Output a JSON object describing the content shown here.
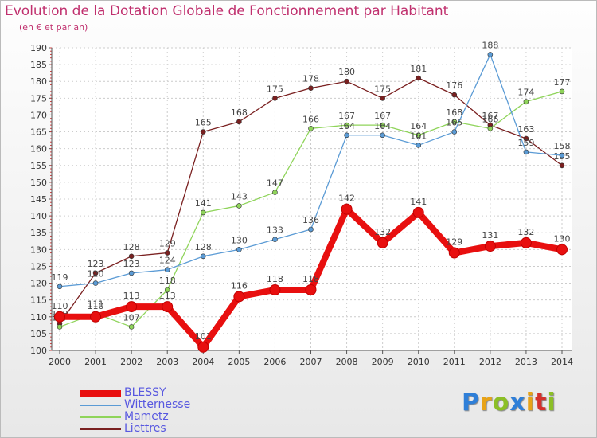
{
  "title": "Evolution de la Dotation Globale de Fonctionnement par Habitant",
  "subtitle": "(en € et par an)",
  "logo": [
    "P",
    "r",
    "o",
    "x",
    "i",
    "t",
    "i"
  ],
  "logo_colors": [
    "#2f7fd8",
    "#e8a317",
    "#8cbf26",
    "#2f7fd8",
    "#e8a317",
    "#d4312c",
    "#8cbf26"
  ],
  "chart_data": {
    "type": "line",
    "title": "Evolution de la Dotation Globale de Fonctionnement par Habitant",
    "subtitle": "(en € et par an)",
    "xlabel": "",
    "ylabel": "",
    "x": [
      "2000",
      "2001",
      "2002",
      "2003",
      "2004",
      "2005",
      "2006",
      "2007",
      "2008",
      "2009",
      "2010",
      "2011",
      "2012",
      "2013",
      "2014"
    ],
    "ylim": [
      100,
      190
    ],
    "yticks": [
      100,
      105,
      110,
      115,
      120,
      125,
      130,
      135,
      140,
      145,
      150,
      155,
      160,
      165,
      170,
      175,
      180,
      185,
      190
    ],
    "series": [
      {
        "name": "BLESSY",
        "color": "#e80f0f",
        "values": [
          110,
          110,
          113,
          113,
          101,
          116,
          118,
          118,
          142,
          132,
          141,
          129,
          131,
          132,
          130
        ]
      },
      {
        "name": "Witternesse",
        "color": "#5b9bd5",
        "values": [
          119,
          120,
          123,
          124,
          128,
          130,
          133,
          136,
          164,
          164,
          161,
          165,
          188,
          159,
          158
        ]
      },
      {
        "name": "Mametz",
        "color": "#8fd45a",
        "values": [
          107,
          111,
          107,
          118,
          141,
          143,
          147,
          166,
          167,
          167,
          164,
          168,
          166,
          174,
          177
        ]
      },
      {
        "name": "Liettres",
        "color": "#7a2020",
        "values": [
          108,
          123,
          128,
          129,
          165,
          168,
          175,
          178,
          180,
          175,
          181,
          176,
          167,
          163,
          155
        ]
      }
    ],
    "legend_position": "bottom-left"
  }
}
